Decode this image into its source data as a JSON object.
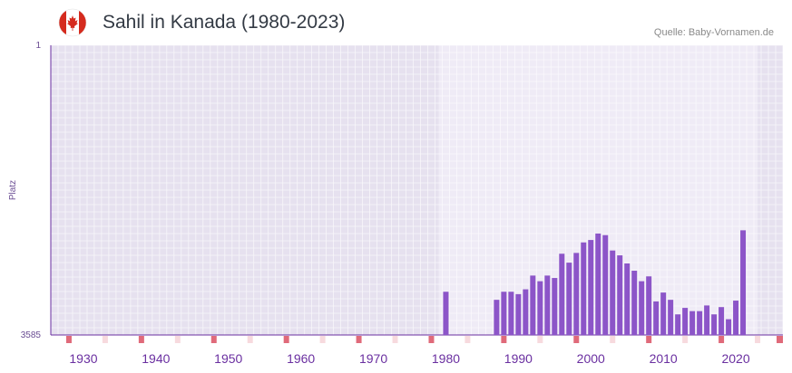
{
  "header": {
    "title": "Sahil in Kanada (1980-2023)",
    "source": "Quelle: Baby-Vornamen.de",
    "flag_icon": "canada-flag-icon"
  },
  "chart_data": {
    "type": "bar",
    "title": "Sahil in Kanada (1980-2023)",
    "ylabel": "Platz",
    "xlabel": "",
    "ylim": [
      3585,
      1
    ],
    "y_ticks": [
      "1",
      "3585"
    ],
    "xlim": [
      1926,
      2027
    ],
    "x_ticks": [
      1930,
      1940,
      1950,
      1960,
      1970,
      1980,
      1990,
      2000,
      2010,
      2020
    ],
    "highlight_range": [
      1980,
      2023
    ],
    "colors": {
      "bar": "#8c55c8",
      "axis": "#6a2fa0",
      "marker": "#e06a7a"
    },
    "x": [
      1980,
      1987,
      1988,
      1989,
      1990,
      1991,
      1992,
      1993,
      1994,
      1995,
      1996,
      1997,
      1998,
      1999,
      2000,
      2001,
      2002,
      2003,
      2004,
      2005,
      2006,
      2007,
      2008,
      2009,
      2010,
      2011,
      2012,
      2013,
      2014,
      2015,
      2016,
      2017,
      2018,
      2019,
      2020,
      2021
    ],
    "values": [
      3050,
      3150,
      3050,
      3050,
      3080,
      3020,
      2850,
      2920,
      2850,
      2880,
      2580,
      2690,
      2570,
      2440,
      2410,
      2330,
      2350,
      2540,
      2600,
      2700,
      2790,
      2920,
      2860,
      3170,
      3060,
      3150,
      3330,
      3250,
      3290,
      3290,
      3220,
      3330,
      3240,
      3390,
      3160,
      2290
    ]
  }
}
